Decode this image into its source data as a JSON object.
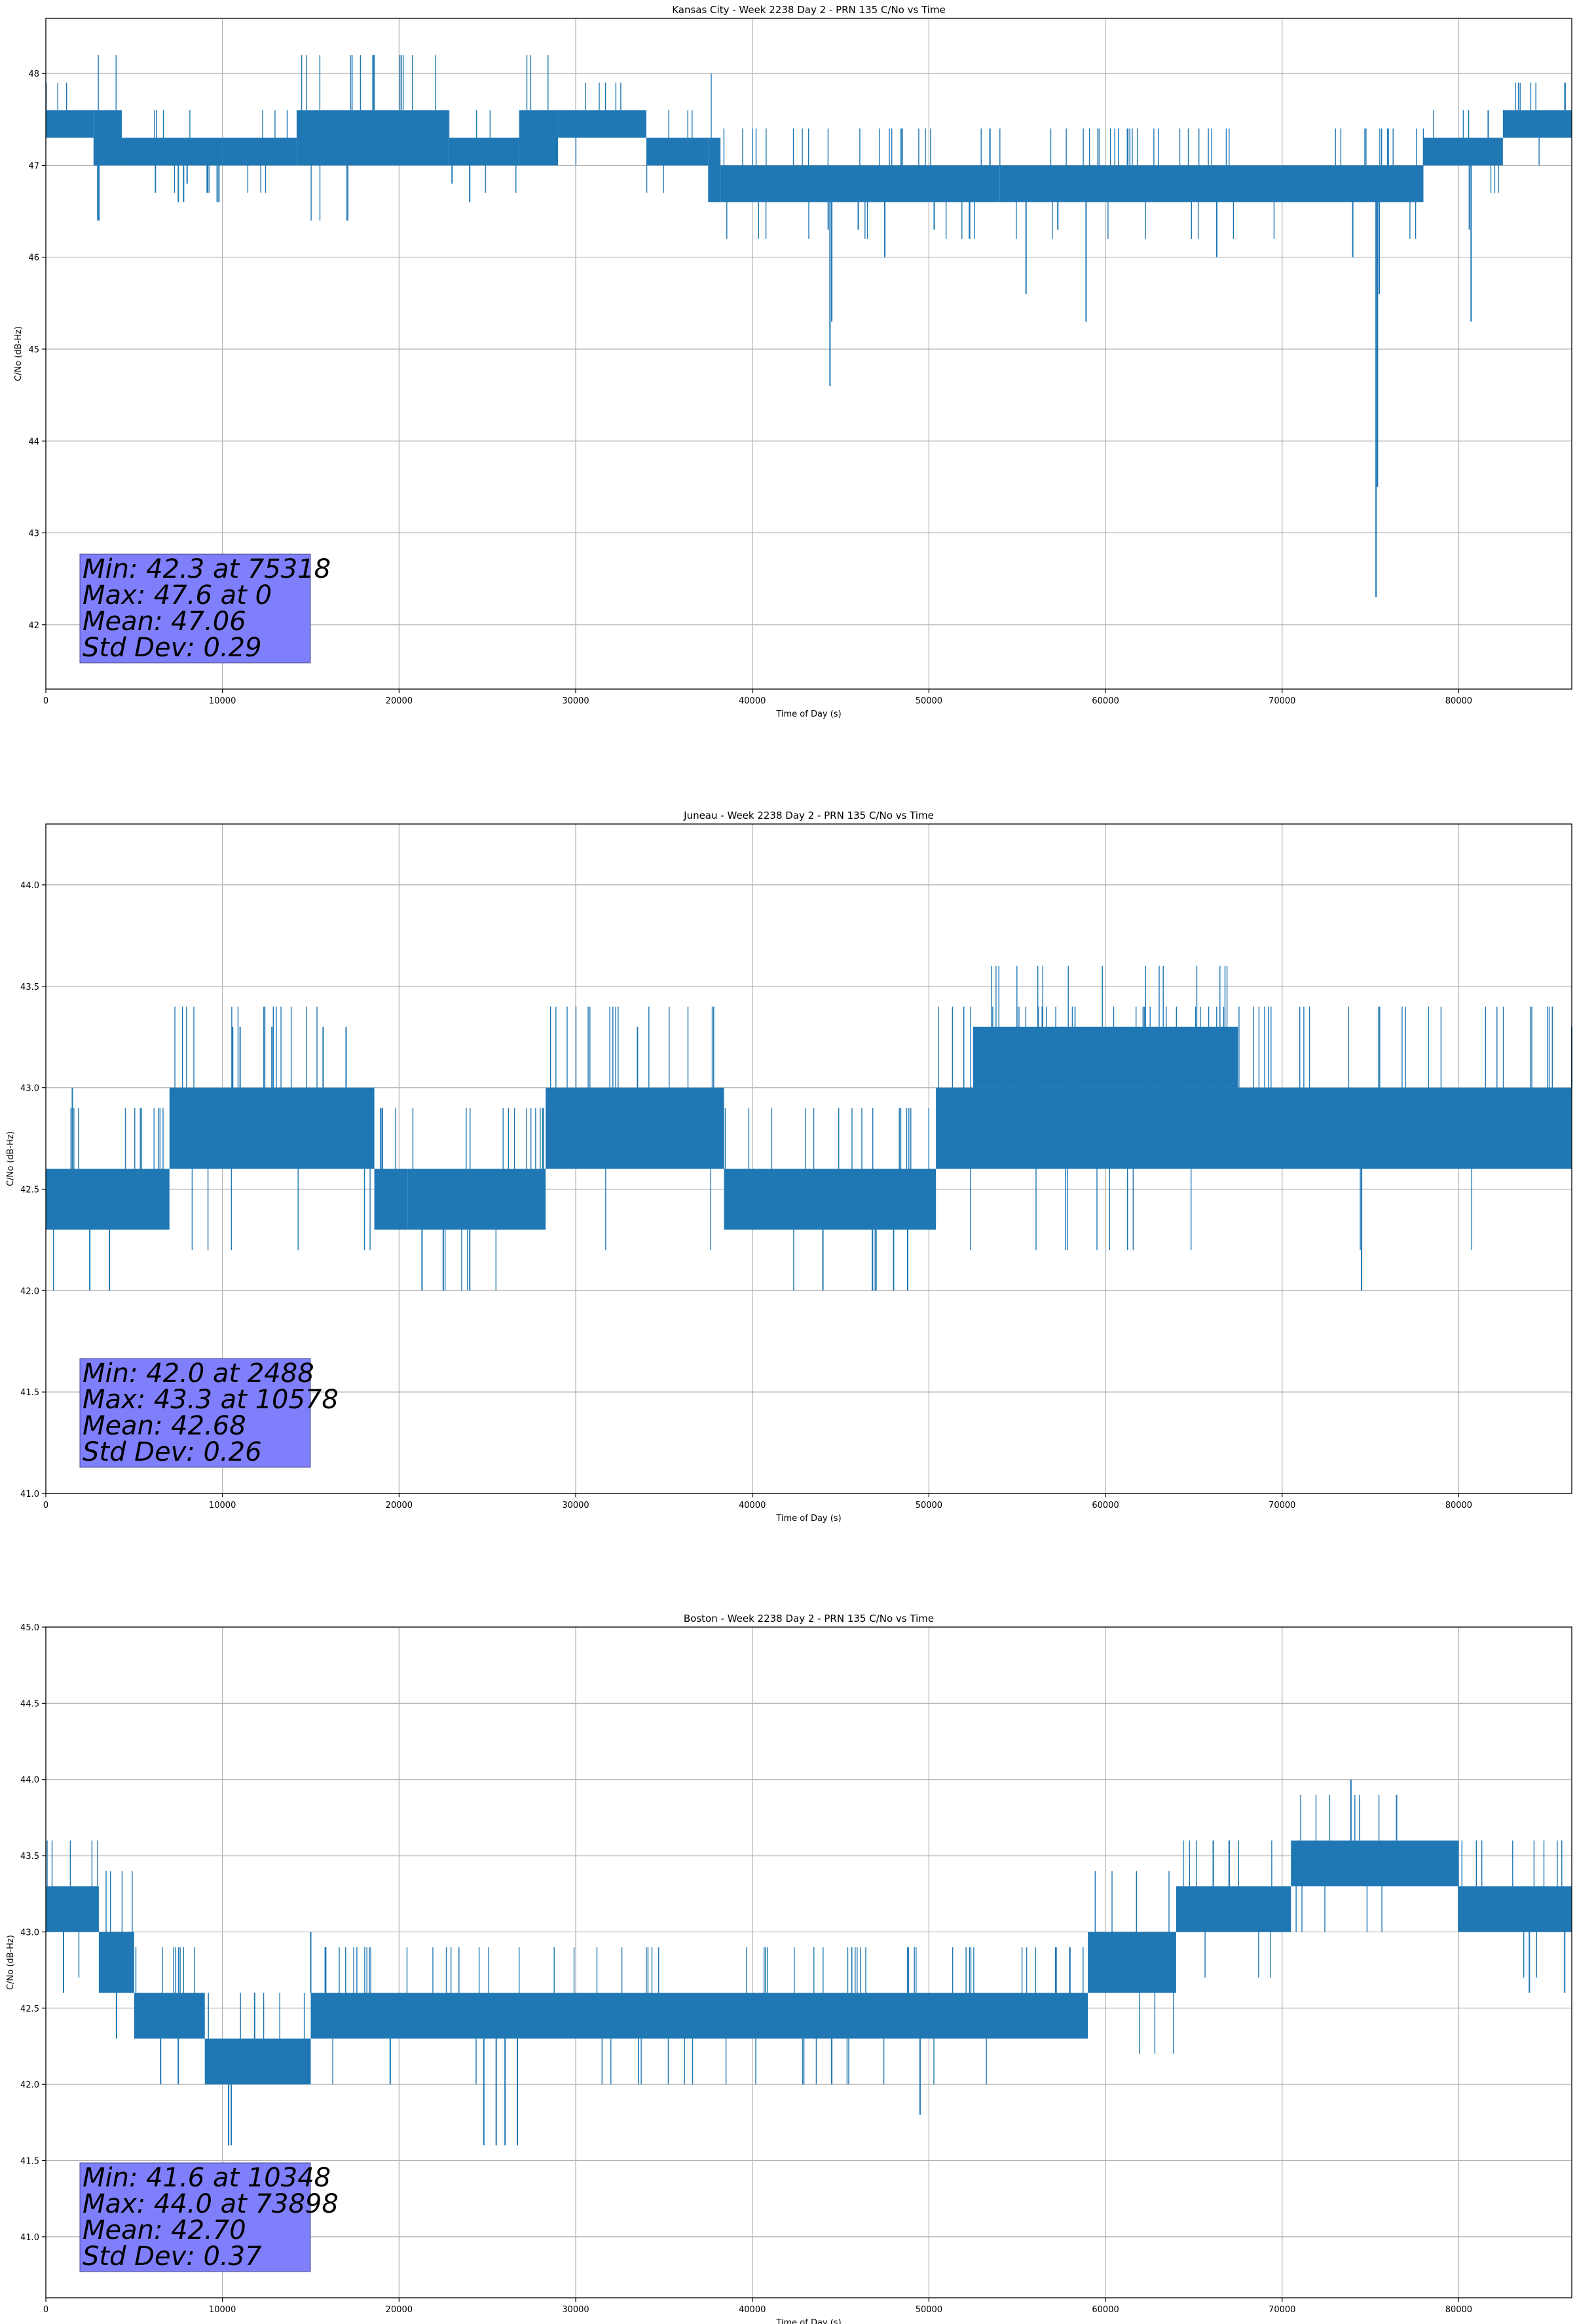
{
  "chart_data": [
    {
      "type": "line",
      "title": "Kansas City - Week 2238 Day 2 - PRN 135 C/No vs Time",
      "xlabel": "Time of Day (s)",
      "ylabel": "C/No (dB-Hz)",
      "xlim": [
        0,
        86400
      ],
      "ylim": [
        41.3,
        48.6
      ],
      "x_ticks": [
        0,
        10000,
        20000,
        30000,
        40000,
        50000,
        60000,
        70000,
        80000
      ],
      "y_ticks": [
        42,
        43,
        44,
        45,
        46,
        47,
        48
      ],
      "y_tick_labels": [
        "42",
        "43",
        "44",
        "45",
        "46",
        "47",
        "48"
      ],
      "grid": true,
      "color": "#1f77b4",
      "series": [
        {
          "segments": [
            {
              "x0": 0,
              "x1": 2700,
              "lo": 47.3,
              "hi": 47.6
            },
            {
              "x0": 2700,
              "x1": 4300,
              "lo": 47.0,
              "hi": 47.6
            },
            {
              "x0": 4300,
              "x1": 10000,
              "lo": 47.0,
              "hi": 47.3
            },
            {
              "x0": 10000,
              "x1": 14200,
              "lo": 47.0,
              "hi": 47.3
            },
            {
              "x0": 14200,
              "x1": 22800,
              "lo": 47.0,
              "hi": 47.6
            },
            {
              "x0": 22800,
              "x1": 26800,
              "lo": 47.0,
              "hi": 47.3
            },
            {
              "x0": 26800,
              "x1": 29000,
              "lo": 47.0,
              "hi": 47.6
            },
            {
              "x0": 29000,
              "x1": 34000,
              "lo": 47.3,
              "hi": 47.6
            },
            {
              "x0": 34000,
              "x1": 37500,
              "lo": 47.0,
              "hi": 47.3
            },
            {
              "x0": 37500,
              "x1": 38200,
              "lo": 46.6,
              "hi": 47.3
            },
            {
              "x0": 38200,
              "x1": 54000,
              "lo": 46.6,
              "hi": 47.0
            },
            {
              "x0": 54000,
              "x1": 78000,
              "lo": 46.6,
              "hi": 47.0
            },
            {
              "x0": 78000,
              "x1": 82500,
              "lo": 47.0,
              "hi": 47.3
            },
            {
              "x0": 82500,
              "x1": 86400,
              "lo": 47.3,
              "hi": 47.6
            }
          ],
          "spikes": [
            {
              "x": 7500,
              "y": 46.6
            },
            {
              "x": 7800,
              "y": 46.6
            },
            {
              "x": 8000,
              "y": 46.8
            },
            {
              "x": 9700,
              "y": 46.6
            },
            {
              "x": 9800,
              "y": 46.6
            },
            {
              "x": 23000,
              "y": 46.8
            },
            {
              "x": 24000,
              "y": 46.6
            },
            {
              "x": 44300,
              "y": 46.3
            },
            {
              "x": 44400,
              "y": 44.6
            },
            {
              "x": 44500,
              "y": 45.3
            },
            {
              "x": 46000,
              "y": 46.3
            },
            {
              "x": 47500,
              "y": 46.0
            },
            {
              "x": 50300,
              "y": 46.3
            },
            {
              "x": 55500,
              "y": 45.6
            },
            {
              "x": 57300,
              "y": 46.3
            },
            {
              "x": 58900,
              "y": 45.3
            },
            {
              "x": 66300,
              "y": 46.0
            },
            {
              "x": 74000,
              "y": 46.0
            },
            {
              "x": 75318,
              "y": 42.3
            },
            {
              "x": 75400,
              "y": 43.5
            },
            {
              "x": 75500,
              "y": 45.6
            },
            {
              "x": 80600,
              "y": 46.3
            },
            {
              "x": 80700,
              "y": 45.3
            }
          ]
        }
      ],
      "stats": [
        "Min: 42.3 at 75318",
        "Max: 47.6 at 0",
        "Mean: 47.06",
        "Std Dev: 0.29"
      ]
    },
    {
      "type": "line",
      "title": "Juneau - Week 2238 Day 2 - PRN 135 C/No vs Time",
      "xlabel": "Time of Day (s)",
      "ylabel": "C/No (dB-Hz)",
      "xlim": [
        0,
        86400
      ],
      "ylim": [
        41.0,
        44.3
      ],
      "x_ticks": [
        0,
        10000,
        20000,
        30000,
        40000,
        50000,
        60000,
        70000,
        80000
      ],
      "y_ticks": [
        41.0,
        41.5,
        42.0,
        42.5,
        43.0,
        43.5,
        44.0
      ],
      "y_tick_labels": [
        "41.0",
        "41.5",
        "42.0",
        "42.5",
        "43.0",
        "43.5",
        "44.0"
      ],
      "grid": true,
      "color": "#1f77b4",
      "series": [
        {
          "segments": [
            {
              "x0": 0,
              "x1": 7000,
              "lo": 42.3,
              "hi": 42.6
            },
            {
              "x0": 7000,
              "x1": 18600,
              "lo": 42.6,
              "hi": 43.0
            },
            {
              "x0": 18600,
              "x1": 20500,
              "lo": 42.3,
              "hi": 42.6
            },
            {
              "x0": 20500,
              "x1": 28300,
              "lo": 42.3,
              "hi": 42.6
            },
            {
              "x0": 28300,
              "x1": 38400,
              "lo": 42.6,
              "hi": 43.0
            },
            {
              "x0": 38400,
              "x1": 50400,
              "lo": 42.3,
              "hi": 42.6
            },
            {
              "x0": 50400,
              "x1": 86400,
              "lo": 42.6,
              "hi": 43.0
            },
            {
              "x0": 52500,
              "x1": 67500,
              "lo": 43.0,
              "hi": 43.3
            }
          ],
          "spikes": [
            {
              "x": 1500,
              "y": 43.0
            },
            {
              "x": 2488,
              "y": 42.0
            },
            {
              "x": 3600,
              "y": 42.0
            },
            {
              "x": 10578,
              "y": 43.3
            },
            {
              "x": 11000,
              "y": 43.3
            },
            {
              "x": 12800,
              "y": 43.3
            },
            {
              "x": 15700,
              "y": 43.3
            },
            {
              "x": 17000,
              "y": 43.3
            },
            {
              "x": 21300,
              "y": 42.0
            },
            {
              "x": 22500,
              "y": 42.0
            },
            {
              "x": 24000,
              "y": 42.0
            },
            {
              "x": 33500,
              "y": 43.3
            },
            {
              "x": 44000,
              "y": 42.0
            },
            {
              "x": 46800,
              "y": 42.0
            },
            {
              "x": 48000,
              "y": 42.0
            },
            {
              "x": 48800,
              "y": 42.0
            },
            {
              "x": 74500,
              "y": 42.0
            },
            {
              "x": 86400,
              "y": 43.3
            }
          ]
        }
      ],
      "stats": [
        "Min: 42.0 at 2488",
        "Max: 43.3 at 10578",
        "Mean: 42.68",
        "Std Dev: 0.26"
      ]
    },
    {
      "type": "line",
      "title": "Boston - Week 2238 Day 2 - PRN 135 C/No vs Time",
      "xlabel": "Time of Day (s)",
      "ylabel": "C/No (dB-Hz)",
      "xlim": [
        0,
        86400
      ],
      "ylim": [
        40.6,
        45.0
      ],
      "x_ticks": [
        0,
        10000,
        20000,
        30000,
        40000,
        50000,
        60000,
        70000,
        80000
      ],
      "y_ticks": [
        41.0,
        41.5,
        42.0,
        42.5,
        43.0,
        43.5,
        44.0,
        44.5,
        45.0
      ],
      "y_tick_labels": [
        "41.0",
        "41.5",
        "42.0",
        "42.5",
        "43.0",
        "43.5",
        "44.0",
        "44.5",
        "45.0"
      ],
      "grid": true,
      "color": "#1f77b4",
      "series": [
        {
          "segments": [
            {
              "x0": 0,
              "x1": 3000,
              "lo": 43.0,
              "hi": 43.3
            },
            {
              "x0": 3000,
              "x1": 5000,
              "lo": 42.6,
              "hi": 43.0
            },
            {
              "x0": 5000,
              "x1": 9000,
              "lo": 42.3,
              "hi": 42.6
            },
            {
              "x0": 9000,
              "x1": 15000,
              "lo": 42.0,
              "hi": 42.3
            },
            {
              "x0": 15000,
              "x1": 59000,
              "lo": 42.3,
              "hi": 42.6
            },
            {
              "x0": 59000,
              "x1": 64000,
              "lo": 42.6,
              "hi": 43.0
            },
            {
              "x0": 64000,
              "x1": 70500,
              "lo": 43.0,
              "hi": 43.3
            },
            {
              "x0": 70500,
              "x1": 80000,
              "lo": 43.3,
              "hi": 43.6
            },
            {
              "x0": 80000,
              "x1": 86400,
              "lo": 43.0,
              "hi": 43.3
            }
          ],
          "spikes": [
            {
              "x": 1000,
              "y": 42.6
            },
            {
              "x": 4000,
              "y": 42.3
            },
            {
              "x": 6500,
              "y": 42.0
            },
            {
              "x": 7500,
              "y": 42.0
            },
            {
              "x": 10348,
              "y": 41.6
            },
            {
              "x": 10500,
              "y": 41.6
            },
            {
              "x": 15000,
              "y": 43.0
            },
            {
              "x": 19500,
              "y": 42.0
            },
            {
              "x": 24800,
              "y": 41.6
            },
            {
              "x": 25500,
              "y": 41.6
            },
            {
              "x": 26000,
              "y": 41.6
            },
            {
              "x": 26700,
              "y": 41.6
            },
            {
              "x": 44500,
              "y": 42.0
            },
            {
              "x": 49500,
              "y": 41.8
            },
            {
              "x": 67000,
              "y": 43.6
            },
            {
              "x": 73898,
              "y": 44.0
            },
            {
              "x": 84000,
              "y": 42.6
            },
            {
              "x": 86000,
              "y": 42.6
            }
          ]
        }
      ],
      "stats": [
        "Min: 41.6 at 10348",
        "Max: 44.0 at 73898",
        "Mean: 42.70",
        "Std Dev: 0.37"
      ]
    }
  ]
}
